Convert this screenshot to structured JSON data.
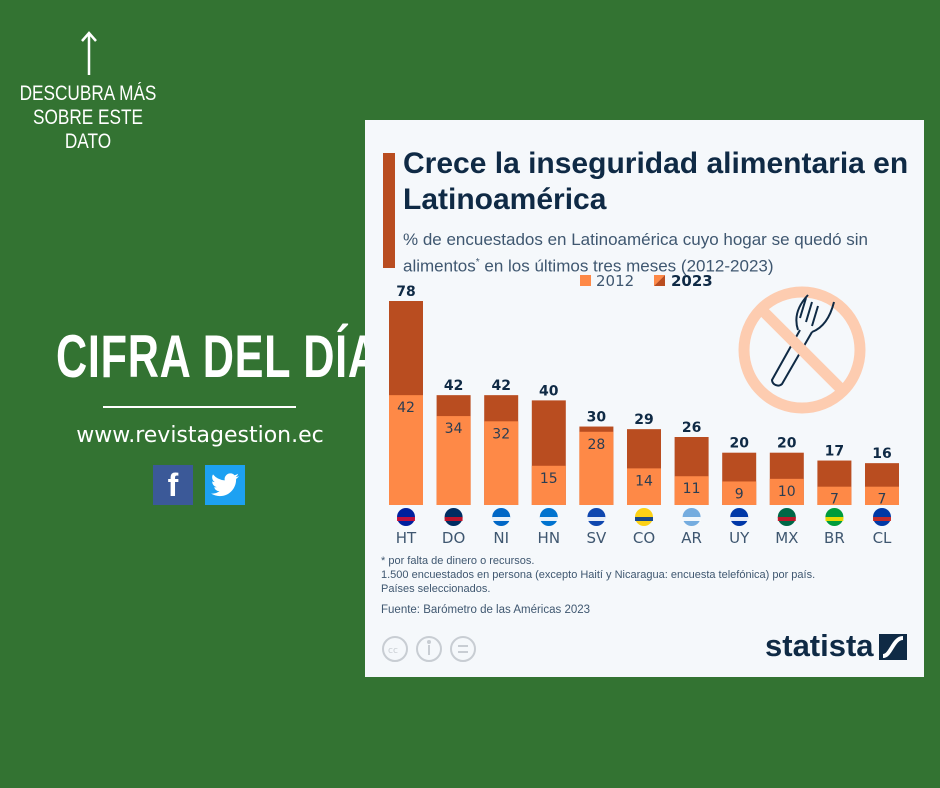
{
  "side": {
    "cta": "DESCUBRA MÁS SOBRE ESTE DATO",
    "heading": "CIFRA DEL DÍA",
    "url": "www.revistagestion.ec",
    "facebook": "f",
    "twitter": "twitter-bird"
  },
  "card": {
    "title": "Crece la inseguridad alimentaria en Latinoamérica",
    "subtitle_a": "% de encuestados en Latinoamérica cuyo hogar se quedó sin alimentos",
    "subtitle_star": "*",
    "subtitle_b": " en los últimos tres meses (2012-2023)",
    "note1": "* por falta de dinero o recursos.",
    "note2": "1.500 encuestados en persona (excepto Haití y Nicaragua: encuesta telefónica) por país.",
    "note3": "Países seleccionados.",
    "source": "Fuente: Barómetro de las Américas 2023",
    "brand": "statista"
  },
  "colors": {
    "c2012": "#fe8947",
    "c2023": "#b94d20",
    "label": "#0f2a45"
  },
  "chart_data": {
    "type": "bar",
    "title": "Crece la inseguridad alimentaria en Latinoamérica",
    "categories": [
      "HT",
      "DO",
      "NI",
      "HN",
      "SV",
      "CO",
      "AR",
      "UY",
      "MX",
      "BR",
      "CL"
    ],
    "series": [
      {
        "name": "2012",
        "values": [
          42,
          34,
          32,
          15,
          28,
          14,
          11,
          9,
          10,
          7,
          7
        ]
      },
      {
        "name": "2023",
        "values": [
          78,
          42,
          42,
          40,
          30,
          29,
          26,
          20,
          20,
          17,
          16
        ]
      }
    ],
    "ylim": [
      0,
      78
    ],
    "legend": "top-center",
    "grid": false
  }
}
